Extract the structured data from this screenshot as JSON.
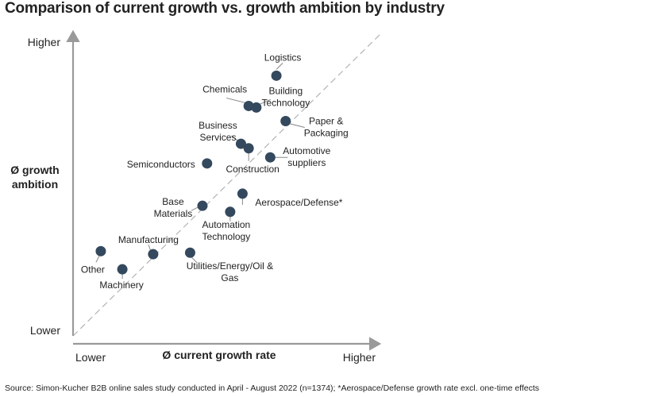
{
  "title": "Comparison of current growth vs. growth ambition by industry",
  "footnote": "Source: Simon-Kucher B2B online sales study conducted in April - August 2022 (n=1374); *Aerospace/Defense growth rate excl. one-time effects",
  "colors": {
    "point": "#34495e",
    "axis": "#9a9a9a",
    "diagonal": "#b3b3b3",
    "text": "#222222"
  },
  "chart_data": {
    "type": "scatter",
    "title": "Comparison of current growth vs. growth ambition by industry",
    "xlabel": "Ø current growth rate",
    "ylabel_lines": [
      "Ø growth",
      "ambition"
    ],
    "x_low_label": "Lower",
    "x_high_label": "Higher",
    "y_low_label": "Lower",
    "y_high_label": "Higher",
    "xlim": [
      0,
      100
    ],
    "ylim": [
      0,
      100
    ],
    "diagonal_reference": true,
    "grid": false,
    "points": [
      {
        "name": "Logistics",
        "label_lines": [
          "Logistics"
        ],
        "x": 66,
        "y": 86
      },
      {
        "name": "Chemicals",
        "label_lines": [
          "Chemicals"
        ],
        "x": 57,
        "y": 76
      },
      {
        "name": "Building Technology",
        "label_lines": [
          "Building",
          "Technology"
        ],
        "x": 59.5,
        "y": 75.5
      },
      {
        "name": "Paper & Packaging",
        "label_lines": [
          "Paper &",
          "Packaging"
        ],
        "x": 69,
        "y": 71
      },
      {
        "name": "Business Services",
        "label_lines": [
          "Business",
          "Services"
        ],
        "x": 54.5,
        "y": 63.5
      },
      {
        "name": "Construction",
        "label_lines": [
          "Construction"
        ],
        "x": 57,
        "y": 62
      },
      {
        "name": "Automotive suppliers",
        "label_lines": [
          "Automotive",
          "suppliers"
        ],
        "x": 64,
        "y": 59
      },
      {
        "name": "Semiconductors",
        "label_lines": [
          "Semiconductors"
        ],
        "x": 43.5,
        "y": 57
      },
      {
        "name": "Aerospace/Defense*",
        "label_lines": [
          "Aerospace/Defense*"
        ],
        "x": 55,
        "y": 47
      },
      {
        "name": "Base Materials",
        "label_lines": [
          "Base",
          "Materials"
        ],
        "x": 42,
        "y": 43
      },
      {
        "name": "Automation Technology",
        "label_lines": [
          "Automation",
          "Technology"
        ],
        "x": 51,
        "y": 41
      },
      {
        "name": "Manufacturing",
        "label_lines": [
          "Manufacturing"
        ],
        "x": 26,
        "y": 27
      },
      {
        "name": "Utilities/Energy/Oil & Gas",
        "label_lines": [
          "Utilities/Energy/Oil &",
          "Gas"
        ],
        "x": 38,
        "y": 27.5
      },
      {
        "name": "Other",
        "label_lines": [
          "Other"
        ],
        "x": 9,
        "y": 28
      },
      {
        "name": "Machinery",
        "label_lines": [
          "Machinery"
        ],
        "x": 16,
        "y": 22
      }
    ]
  }
}
